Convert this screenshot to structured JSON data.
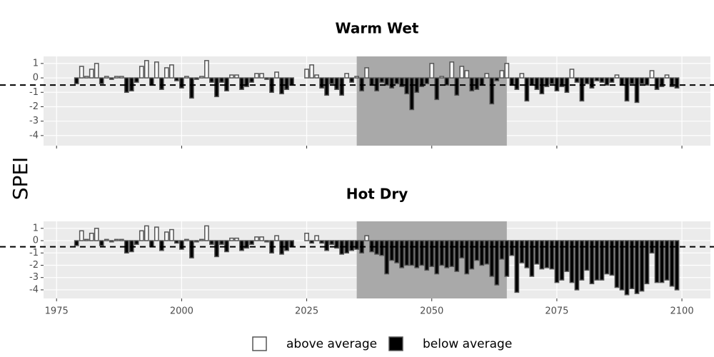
{
  "y_label": "SPEI",
  "legend": [
    {
      "name": "above average",
      "color": "#ffffff"
    },
    {
      "name": "below average",
      "color": "#000000"
    }
  ],
  "chart_data": [
    {
      "type": "bar",
      "title": "Warm Wet",
      "x": [
        1979,
        1980,
        1981,
        1982,
        1983,
        1984,
        1985,
        1986,
        1987,
        1988,
        1989,
        1990,
        1991,
        1992,
        1993,
        1994,
        1995,
        1996,
        1997,
        1998,
        1999,
        2000,
        2001,
        2002,
        2003,
        2004,
        2005,
        2006,
        2007,
        2008,
        2009,
        2010,
        2011,
        2012,
        2013,
        2014,
        2015,
        2016,
        2017,
        2018,
        2019,
        2020,
        2021,
        2022,
        2025,
        2026,
        2027,
        2028,
        2029,
        2030,
        2031,
        2032,
        2033,
        2034,
        2035,
        2036,
        2037,
        2038,
        2039,
        2040,
        2041,
        2042,
        2043,
        2044,
        2045,
        2046,
        2047,
        2048,
        2049,
        2050,
        2051,
        2052,
        2053,
        2054,
        2055,
        2056,
        2057,
        2058,
        2059,
        2060,
        2061,
        2062,
        2063,
        2064,
        2065,
        2066,
        2067,
        2068,
        2069,
        2070,
        2071,
        2072,
        2073,
        2074,
        2075,
        2076,
        2077,
        2078,
        2079,
        2080,
        2081,
        2082,
        2083,
        2084,
        2085,
        2086,
        2087,
        2088,
        2089,
        2090,
        2091,
        2092,
        2093,
        2094,
        2095,
        2096,
        2097,
        2098,
        2099
      ],
      "values": [
        -0.4,
        0.8,
        0.1,
        0.6,
        1.0,
        -0.4,
        0.1,
        -0.1,
        0.1,
        0.1,
        -1.0,
        -0.9,
        -0.3,
        0.8,
        1.2,
        -0.5,
        1.1,
        -0.8,
        0.7,
        0.9,
        -0.2,
        -0.7,
        0.1,
        -1.4,
        -0.1,
        0.1,
        1.2,
        -0.3,
        -1.3,
        -0.3,
        -0.9,
        0.2,
        0.2,
        -0.8,
        -0.6,
        -0.3,
        0.3,
        0.3,
        -0.1,
        -1.0,
        0.4,
        -1.1,
        -0.8,
        -0.5,
        0.6,
        0.9,
        0.2,
        -0.7,
        -1.2,
        -0.4,
        -0.8,
        -1.2,
        0.3,
        -0.3,
        0.1,
        -0.9,
        0.7,
        -0.5,
        -0.9,
        -0.3,
        -0.5,
        -0.7,
        -0.4,
        -0.6,
        -1.1,
        -2.2,
        -1.0,
        -0.6,
        -0.4,
        1.0,
        -1.5,
        0.1,
        -0.5,
        1.1,
        -1.2,
        0.8,
        0.5,
        -0.9,
        -0.8,
        -0.5,
        0.3,
        -1.8,
        -0.2,
        0.5,
        1.0,
        -0.5,
        -0.8,
        0.3,
        -1.6,
        -0.5,
        -0.8,
        -1.1,
        -0.6,
        -0.4,
        -0.9,
        -0.6,
        -1.0,
        0.6,
        -0.3,
        -1.6,
        -0.4,
        -0.7,
        -0.2,
        -0.3,
        -0.5,
        -0.3,
        0.2,
        -0.5,
        -1.6,
        -0.4,
        -1.7,
        -0.4,
        -0.5,
        0.5,
        -0.8,
        -0.6,
        0.2,
        -0.6,
        -0.7
      ],
      "xlim": [
        1972.4,
        2105.7
      ],
      "ylim": [
        -4.7,
        1.49
      ],
      "yticks": [
        1,
        0,
        -1,
        -2,
        -3,
        -4
      ],
      "highlight_range": [
        2035,
        2065
      ],
      "hline": -0.5,
      "grid": true
    },
    {
      "type": "bar",
      "title": "Hot Dry",
      "x": [
        1979,
        1980,
        1981,
        1982,
        1983,
        1984,
        1985,
        1986,
        1987,
        1988,
        1989,
        1990,
        1991,
        1992,
        1993,
        1994,
        1995,
        1996,
        1997,
        1998,
        1999,
        2000,
        2001,
        2002,
        2003,
        2004,
        2005,
        2006,
        2007,
        2008,
        2009,
        2010,
        2011,
        2012,
        2013,
        2014,
        2015,
        2016,
        2017,
        2018,
        2019,
        2020,
        2021,
        2022,
        2025,
        2026,
        2027,
        2028,
        2029,
        2030,
        2031,
        2032,
        2033,
        2034,
        2035,
        2036,
        2037,
        2038,
        2039,
        2040,
        2041,
        2042,
        2043,
        2044,
        2045,
        2046,
        2047,
        2048,
        2049,
        2050,
        2051,
        2052,
        2053,
        2054,
        2055,
        2056,
        2057,
        2058,
        2059,
        2060,
        2061,
        2062,
        2063,
        2064,
        2065,
        2066,
        2067,
        2068,
        2069,
        2070,
        2071,
        2072,
        2073,
        2074,
        2075,
        2076,
        2077,
        2078,
        2079,
        2080,
        2081,
        2082,
        2083,
        2084,
        2085,
        2086,
        2087,
        2088,
        2089,
        2090,
        2091,
        2092,
        2093,
        2094,
        2095,
        2096,
        2097,
        2098,
        2099
      ],
      "values": [
        -0.4,
        0.8,
        0.1,
        0.6,
        1.0,
        -0.4,
        0.1,
        -0.1,
        0.1,
        0.1,
        -1.0,
        -0.9,
        -0.3,
        0.8,
        1.2,
        -0.5,
        1.1,
        -0.8,
        0.7,
        0.9,
        -0.2,
        -0.7,
        0.1,
        -1.4,
        -0.1,
        0.1,
        1.2,
        -0.3,
        -1.3,
        -0.3,
        -0.9,
        0.2,
        0.2,
        -0.8,
        -0.6,
        -0.3,
        0.3,
        0.3,
        -0.1,
        -1.0,
        0.4,
        -1.1,
        -0.8,
        -0.5,
        0.6,
        -0.2,
        0.4,
        -0.2,
        -0.8,
        -0.3,
        -0.6,
        -1.1,
        -1.0,
        -0.8,
        -0.7,
        -1.0,
        0.4,
        -0.9,
        -1.1,
        -1.2,
        -2.7,
        -1.6,
        -1.8,
        -2.2,
        -2.0,
        -2.0,
        -2.2,
        -2.0,
        -2.4,
        -2.1,
        -2.7,
        -2.0,
        -2.2,
        -2.1,
        -2.5,
        -1.4,
        -2.7,
        -2.3,
        -1.6,
        -2.0,
        -1.9,
        -2.9,
        -3.6,
        -1.5,
        -2.9,
        -1.2,
        -4.2,
        -1.8,
        -2.2,
        -2.9,
        -1.9,
        -2.3,
        -2.2,
        -2.3,
        -3.4,
        -3.2,
        -2.5,
        -3.4,
        -4.0,
        -3.2,
        -2.4,
        -3.5,
        -3.2,
        -3.2,
        -2.7,
        -2.8,
        -3.8,
        -4.0,
        -4.4,
        -3.9,
        -4.3,
        -4.1,
        -3.5,
        -1.0,
        -3.4,
        -3.4,
        -3.2,
        -3.7,
        -4.0
      ],
      "xlim": [
        1972.4,
        2105.7
      ],
      "ylim": [
        -4.7,
        1.57
      ],
      "yticks": [
        1,
        0,
        -1,
        -2,
        -3,
        -4
      ],
      "xticks": [
        1975,
        2000,
        2025,
        2050,
        2075,
        2100
      ],
      "highlight_range": [
        2035,
        2065
      ],
      "hline": -0.5,
      "grid": true
    }
  ]
}
